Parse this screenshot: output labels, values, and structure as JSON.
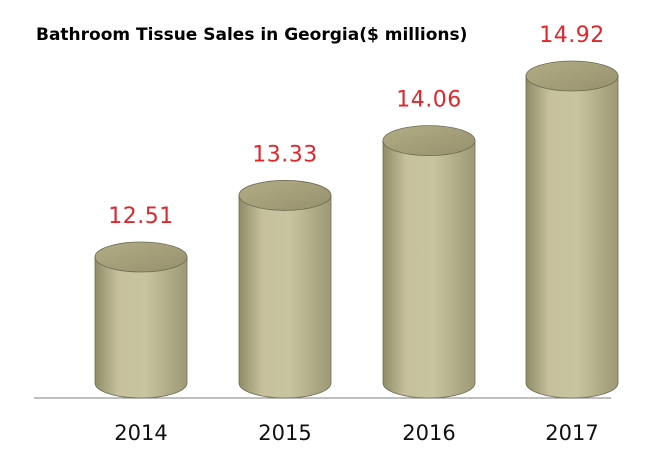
{
  "chart_data": {
    "type": "bar",
    "bar_style": "cylinder",
    "title": "Bathroom Tissue Sales in Georgia($ millions)",
    "categories": [
      "2014",
      "2015",
      "2016",
      "2017"
    ],
    "values": [
      12.51,
      13.33,
      14.06,
      14.92
    ],
    "value_labels": [
      "12.51",
      "13.33",
      "14.06",
      "14.92"
    ],
    "xlabel": "",
    "ylabel": "",
    "grid": false,
    "legend": "none",
    "colors": {
      "bar_body": "#b8b38e",
      "bar_top": "#a9a47c",
      "bar_edge": "#6d6a52",
      "value_label": "#e0262b",
      "axis_line": "#999999"
    }
  }
}
